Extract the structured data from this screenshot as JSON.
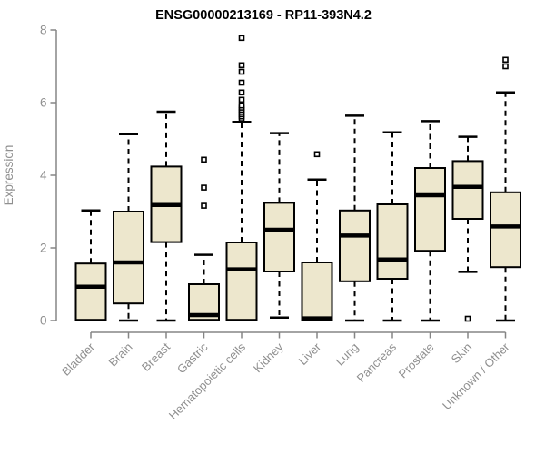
{
  "chart_data": {
    "type": "boxplot",
    "title": "ENSG00000213169 - RP11-393N4.2",
    "xlabel": "",
    "ylabel": "Expression",
    "ylim": [
      0,
      8
    ],
    "yticks": [
      0,
      2,
      4,
      6,
      8
    ],
    "grid": false,
    "legend": "none",
    "categories": [
      "Bladder",
      "Brain",
      "Breast",
      "Gastric",
      "Hematopoietic cells",
      "Kidney",
      "Liver",
      "Lung",
      "Pancreas",
      "Prostate",
      "Skin",
      "Unknown / Other"
    ],
    "boxes": [
      {
        "category": "Bladder",
        "min": 0.02,
        "q1": 0.02,
        "median": 0.93,
        "q3": 1.57,
        "max": 3.03,
        "outliers": []
      },
      {
        "category": "Brain",
        "min": 0.0,
        "q1": 0.47,
        "median": 1.6,
        "q3": 3.0,
        "max": 5.13,
        "outliers": []
      },
      {
        "category": "Breast",
        "min": 0.0,
        "q1": 2.16,
        "median": 3.18,
        "q3": 4.24,
        "max": 5.75,
        "outliers": []
      },
      {
        "category": "Gastric",
        "min": 0.02,
        "q1": 0.02,
        "median": 0.15,
        "q3": 1.0,
        "max": 1.81,
        "outliers": [
          3.16,
          3.66,
          4.43
        ]
      },
      {
        "category": "Hematopoietic cells",
        "min": 0.02,
        "q1": 0.02,
        "median": 1.41,
        "q3": 2.15,
        "max": 5.47,
        "outliers": [
          5.56,
          5.62,
          5.68,
          5.74,
          5.8,
          5.86,
          5.92,
          6.08,
          6.28,
          6.55,
          6.85,
          7.03,
          7.78
        ]
      },
      {
        "category": "Kidney",
        "min": 0.08,
        "q1": 1.35,
        "median": 2.5,
        "q3": 3.24,
        "max": 5.16,
        "outliers": []
      },
      {
        "category": "Liver",
        "min": 0.02,
        "q1": 0.02,
        "median": 0.06,
        "q3": 1.6,
        "max": 3.88,
        "outliers": [
          4.58
        ]
      },
      {
        "category": "Lung",
        "min": 0.0,
        "q1": 1.08,
        "median": 2.34,
        "q3": 3.03,
        "max": 5.64,
        "outliers": []
      },
      {
        "category": "Pancreas",
        "min": 0.0,
        "q1": 1.15,
        "median": 1.68,
        "q3": 3.2,
        "max": 5.18,
        "outliers": []
      },
      {
        "category": "Prostate",
        "min": 0.0,
        "q1": 1.92,
        "median": 3.45,
        "q3": 4.2,
        "max": 5.49,
        "outliers": []
      },
      {
        "category": "Skin",
        "min": 1.34,
        "q1": 2.8,
        "median": 3.68,
        "q3": 4.39,
        "max": 5.06,
        "outliers": [
          0.05
        ]
      },
      {
        "category": "Unknown / Other",
        "min": 0.0,
        "q1": 1.47,
        "median": 2.59,
        "q3": 3.53,
        "max": 6.28,
        "outliers": [
          7.0,
          7.18
        ]
      }
    ],
    "style": {
      "box_fill": "#EDE7CD",
      "box_stroke": "#000000",
      "median_color": "#000000",
      "whisker_color": "#000000",
      "outlier_color": "#000000",
      "axis_color": "#858585",
      "label_color": "#8f8f8f",
      "title_color": "#000000",
      "background": "#ffffff"
    }
  }
}
